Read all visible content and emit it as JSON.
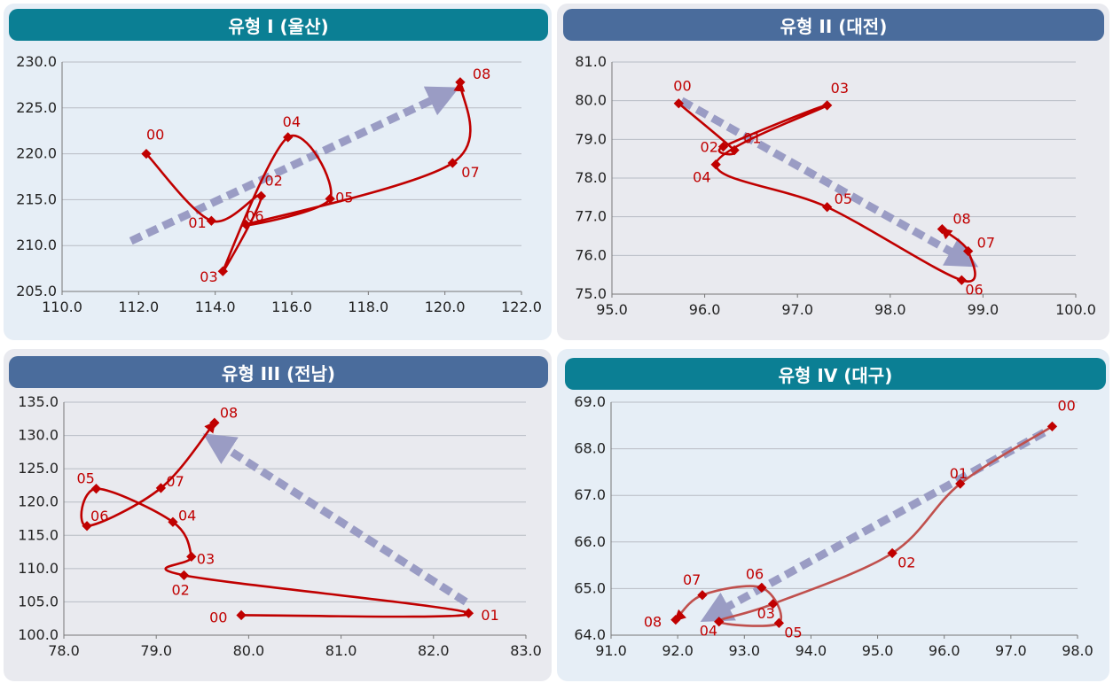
{
  "colors": {
    "teal": "#0b7f94",
    "slate": "#4a6c9c",
    "line": "#c00000",
    "line_soft": "#c0504d",
    "arrow": "#9a9cc4"
  },
  "chart_data": [
    {
      "type": "line",
      "title": "유형 I (울산)",
      "banner_color": "#0b7f94",
      "xlim": [
        110,
        122
      ],
      "ylim": [
        205,
        230
      ],
      "xticks": [
        "110.0",
        "112.0",
        "114.0",
        "116.0",
        "118.0",
        "120.0",
        "122.0"
      ],
      "yticks": [
        "205.0",
        "210.0",
        "215.0",
        "220.0",
        "225.0",
        "230.0"
      ],
      "series": [
        {
          "labels": [
            "00",
            "01",
            "02",
            "03",
            "04",
            "05",
            "06",
            "07",
            "08"
          ],
          "x": [
            112.2,
            113.9,
            115.2,
            114.2,
            115.9,
            117.0,
            114.8,
            120.2,
            120.4
          ],
          "y": [
            220.0,
            212.7,
            215.4,
            207.2,
            221.8,
            215.1,
            212.3,
            219.0,
            227.8
          ]
        }
      ],
      "arrow": {
        "from": [
          111.8,
          210.5
        ],
        "to": [
          120.0,
          226.5
        ]
      }
    },
    {
      "type": "line",
      "title": "유형 II (대전)",
      "banner_color": "#4a6c9c",
      "xlim": [
        95,
        100
      ],
      "ylim": [
        75,
        81
      ],
      "xticks": [
        "95.0",
        "96.0",
        "97.0",
        "98.0",
        "99.0",
        "100.0"
      ],
      "yticks": [
        "75.0",
        "76.0",
        "77.0",
        "78.0",
        "79.0",
        "80.0",
        "81.0"
      ],
      "series": [
        {
          "labels": [
            "00",
            "01",
            "02",
            "03",
            "04",
            "05",
            "06",
            "07",
            "08"
          ],
          "x": [
            95.72,
            96.32,
            96.2,
            97.32,
            96.12,
            97.32,
            98.77,
            98.84,
            98.56
          ],
          "y": [
            79.93,
            78.72,
            78.81,
            79.88,
            78.35,
            77.25,
            75.36,
            76.11,
            76.68
          ]
        }
      ],
      "arrow": {
        "from": [
          95.75,
          80.0
        ],
        "to": [
          98.8,
          75.9
        ]
      }
    },
    {
      "type": "line",
      "title": "유형 III (전남)",
      "banner_color": "#4a6c9c",
      "xlim": [
        78,
        83
      ],
      "ylim": [
        100,
        135
      ],
      "xticks": [
        "78.0",
        "79.0",
        "80.0",
        "81.0",
        "82.0",
        "83.0"
      ],
      "yticks": [
        "100.0",
        "105.0",
        "110.0",
        "115.0",
        "120.0",
        "125.0",
        "130.0",
        "135.0"
      ],
      "series": [
        {
          "labels": [
            "00",
            "01",
            "02",
            "03",
            "04",
            "05",
            "06",
            "07",
            "08"
          ],
          "x": [
            79.92,
            82.38,
            79.3,
            79.38,
            79.18,
            78.35,
            78.25,
            79.05,
            79.63
          ],
          "y": [
            103.0,
            103.3,
            109.0,
            111.8,
            117.0,
            122.0,
            116.4,
            122.1,
            131.9
          ]
        }
      ],
      "arrow": {
        "from": [
          82.35,
          105.0
        ],
        "to": [
          79.65,
          129.0
        ]
      }
    },
    {
      "type": "line",
      "title": "유형 IV (대구)",
      "banner_color": "#0b7f94",
      "xlim": [
        91,
        98
      ],
      "ylim": [
        64,
        69
      ],
      "xticks": [
        "91.0",
        "92.0",
        "93.0",
        "94.0",
        "95.0",
        "96.0",
        "97.0",
        "98.0"
      ],
      "yticks": [
        "64.0",
        "65.0",
        "66.0",
        "67.0",
        "68.0",
        "69.0"
      ],
      "series": [
        {
          "labels": [
            "00",
            "01",
            "02",
            "03",
            "04",
            "05",
            "06",
            "07",
            "08"
          ],
          "x": [
            97.62,
            96.24,
            95.22,
            93.43,
            92.62,
            93.52,
            93.26,
            92.37,
            91.97
          ],
          "y": [
            68.48,
            67.25,
            65.76,
            64.67,
            64.29,
            64.26,
            65.02,
            64.86,
            64.33
          ]
        }
      ],
      "arrow": {
        "from": [
          97.5,
          68.35
        ],
        "to": [
          92.55,
          64.45
        ]
      }
    }
  ]
}
